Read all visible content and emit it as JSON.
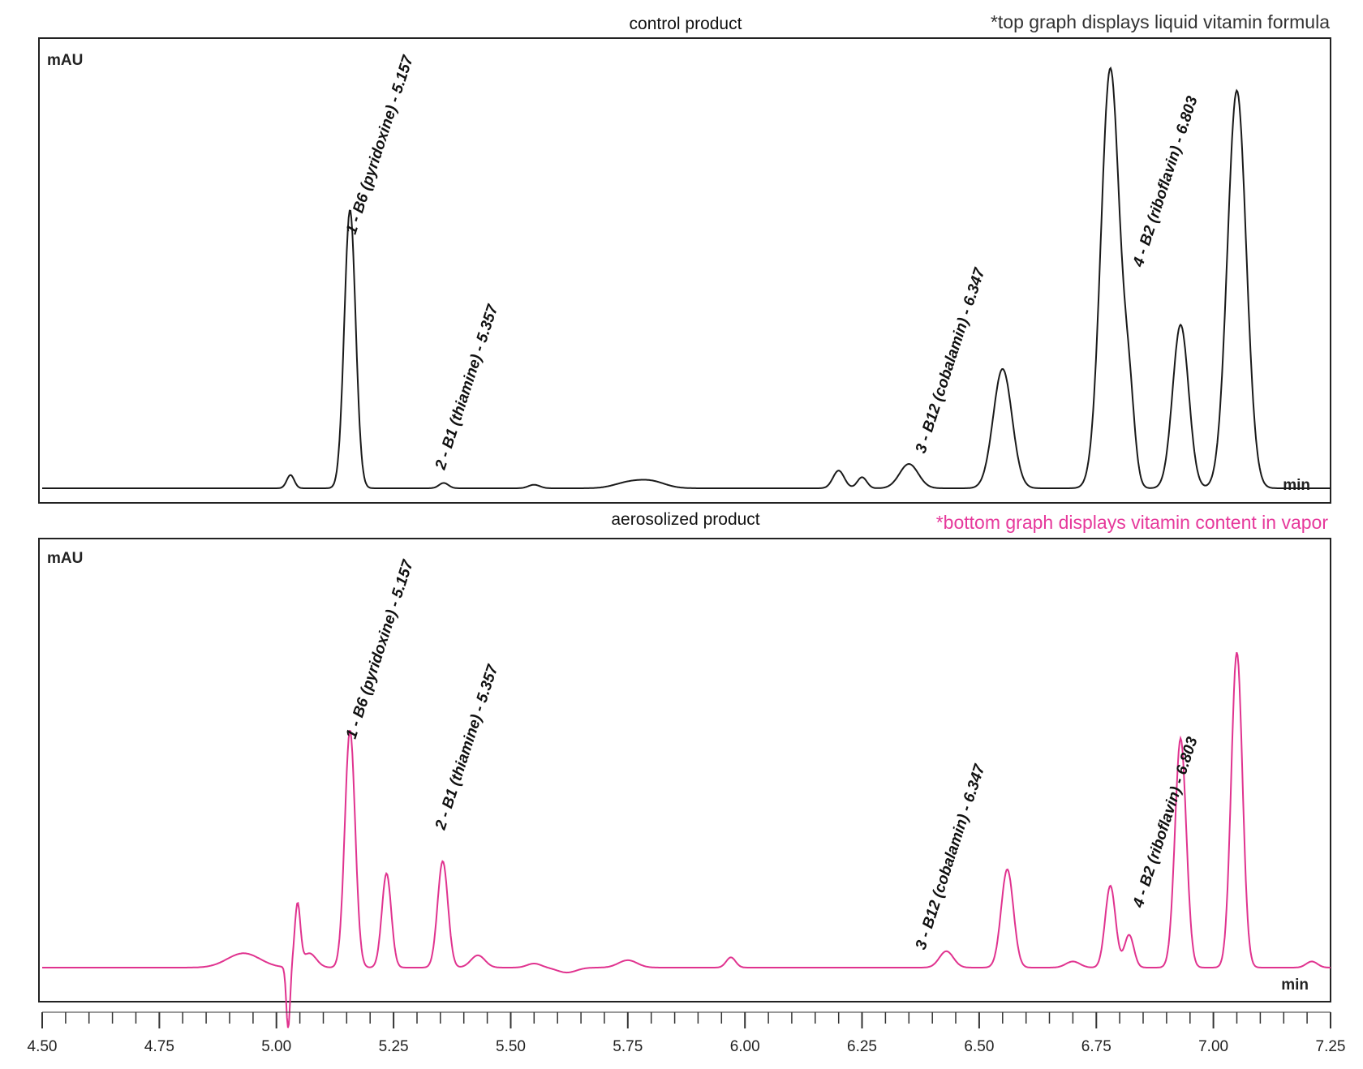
{
  "chart_data": [
    {
      "type": "line",
      "title": "control product",
      "annotation": "*top graph displays liquid vitamin formula",
      "ylabel": "mAU",
      "xlabel": "min",
      "xlim": [
        4.5,
        7.25
      ],
      "x_ticks": [
        "4.50",
        "4.75",
        "5.00",
        "5.25",
        "5.50",
        "5.75",
        "6.00",
        "6.25",
        "6.50",
        "6.75",
        "7.00",
        "7.25"
      ],
      "color": "#1a1a1a",
      "peaks": [
        {
          "x": 5.03,
          "h": 0.03,
          "w": 0.008
        },
        {
          "x": 5.157,
          "h": 0.63,
          "w": 0.012
        },
        {
          "x": 5.357,
          "h": 0.012,
          "w": 0.01
        },
        {
          "x": 5.55,
          "h": 0.008,
          "w": 0.012
        },
        {
          "x": 5.75,
          "h": 0.012,
          "w": 0.03
        },
        {
          "x": 5.8,
          "h": 0.015,
          "w": 0.03
        },
        {
          "x": 6.2,
          "h": 0.04,
          "w": 0.012
        },
        {
          "x": 6.25,
          "h": 0.025,
          "w": 0.01
        },
        {
          "x": 6.35,
          "h": 0.055,
          "w": 0.02
        },
        {
          "x": 6.55,
          "h": 0.27,
          "w": 0.02
        },
        {
          "x": 6.78,
          "h": 0.95,
          "w": 0.02
        },
        {
          "x": 6.82,
          "h": 0.18,
          "w": 0.012
        },
        {
          "x": 6.93,
          "h": 0.37,
          "w": 0.017
        },
        {
          "x": 7.05,
          "h": 0.9,
          "w": 0.02
        }
      ],
      "peak_labels": [
        {
          "text": "1 - B6 (pyridoxine) - 5.157",
          "x": 5.157
        },
        {
          "text": "2 - B1 (thiamine) - 5.357",
          "x": 5.357
        },
        {
          "text": "3 - B12 (cobalamin) - 6.347",
          "x": 6.347
        },
        {
          "text": "4 - B2 (riboflavin) - 6.803",
          "x": 6.803
        }
      ]
    },
    {
      "type": "line",
      "title": "aerosolized product",
      "annotation": "*bottom graph displays vitamin content in vapor",
      "ylabel": "mAU",
      "xlabel": "min",
      "xlim": [
        4.5,
        7.25
      ],
      "x_ticks": [
        "4.50",
        "4.75",
        "5.00",
        "5.25",
        "5.50",
        "5.75",
        "6.00",
        "6.25",
        "6.50",
        "6.75",
        "7.00",
        "7.25"
      ],
      "color": "#e0338f",
      "peaks": [
        {
          "x": 4.93,
          "h": 0.035,
          "w": 0.035
        },
        {
          "x": 5.045,
          "h": 0.15,
          "w": 0.006
        },
        {
          "x": 5.07,
          "h": 0.035,
          "w": 0.015
        },
        {
          "x": 5.157,
          "h": 0.58,
          "w": 0.011
        },
        {
          "x": 5.235,
          "h": 0.23,
          "w": 0.01
        },
        {
          "x": 5.355,
          "h": 0.26,
          "w": 0.011
        },
        {
          "x": 5.43,
          "h": 0.03,
          "w": 0.015
        },
        {
          "x": 5.55,
          "h": 0.01,
          "w": 0.015
        },
        {
          "x": 5.75,
          "h": 0.018,
          "w": 0.02
        },
        {
          "x": 5.97,
          "h": 0.025,
          "w": 0.01
        },
        {
          "x": 6.43,
          "h": 0.04,
          "w": 0.015
        },
        {
          "x": 6.56,
          "h": 0.24,
          "w": 0.013
        },
        {
          "x": 6.7,
          "h": 0.015,
          "w": 0.015
        },
        {
          "x": 6.78,
          "h": 0.2,
          "w": 0.011
        },
        {
          "x": 6.82,
          "h": 0.08,
          "w": 0.01
        },
        {
          "x": 6.93,
          "h": 0.56,
          "w": 0.012
        },
        {
          "x": 7.05,
          "h": 0.77,
          "w": 0.012
        },
        {
          "x": 7.21,
          "h": 0.015,
          "w": 0.012
        }
      ],
      "dips": [
        {
          "x": 5.025,
          "h": 0.15,
          "w": 0.004
        },
        {
          "x": 5.62,
          "h": 0.012,
          "w": 0.02
        }
      ],
      "peak_labels": [
        {
          "text": "1 - B6 (pyridoxine) - 5.157",
          "x": 5.157
        },
        {
          "text": "2 - B1 (thiamine) - 5.357",
          "x": 5.357
        },
        {
          "text": "3 - B12 (cobalamin) - 6.347",
          "x": 6.347
        },
        {
          "text": "4 - B2 (riboflavin) - 6.803",
          "x": 6.803
        }
      ]
    }
  ]
}
